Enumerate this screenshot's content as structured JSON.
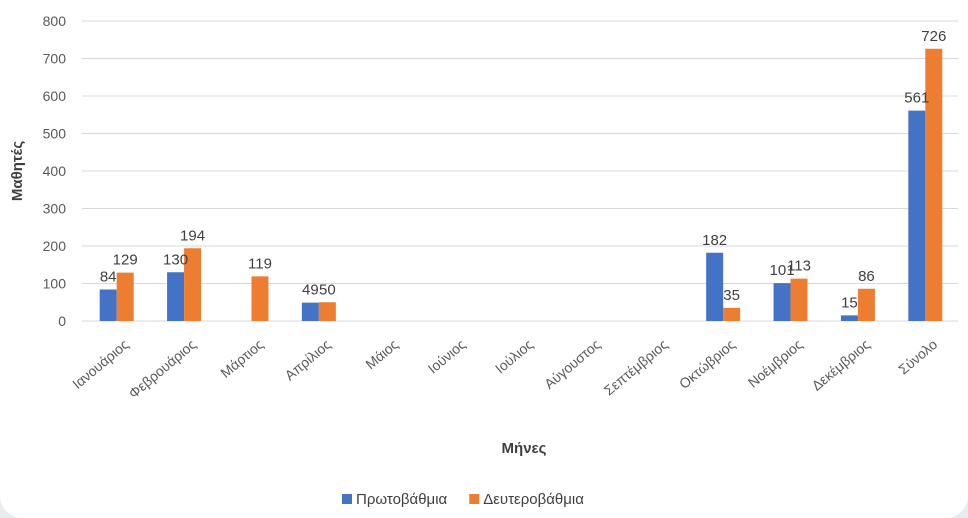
{
  "chart_data": {
    "type": "bar",
    "title": "",
    "xlabel": "Μήνες",
    "ylabel": "Μαθητές",
    "ylim": [
      0,
      800
    ],
    "yticks": [
      0,
      100,
      200,
      300,
      400,
      500,
      600,
      700,
      800
    ],
    "grid": true,
    "legend_position": "bottom",
    "categories": [
      "Ιανουάριος",
      "Φεβρουάριος",
      "Μάρτιος",
      "Απρίλιος",
      "Μάιος",
      "Ιούνιος",
      "Ιούλιος",
      "Αύγουστος",
      "Σεπτέμβριος",
      "Οκτώβριος",
      "Νοέμβριος",
      "Δεκέμβριος",
      "Σύνολο"
    ],
    "series": [
      {
        "name": "Πρωτοβάθμια",
        "color": "#4472c4",
        "values": [
          84,
          130,
          null,
          49,
          null,
          null,
          null,
          null,
          null,
          182,
          101,
          15,
          561
        ]
      },
      {
        "name": "Δευτεροβάθμια",
        "color": "#ed7d31",
        "values": [
          129,
          194,
          119,
          50,
          null,
          null,
          null,
          null,
          null,
          35,
          113,
          86,
          726
        ]
      }
    ]
  }
}
